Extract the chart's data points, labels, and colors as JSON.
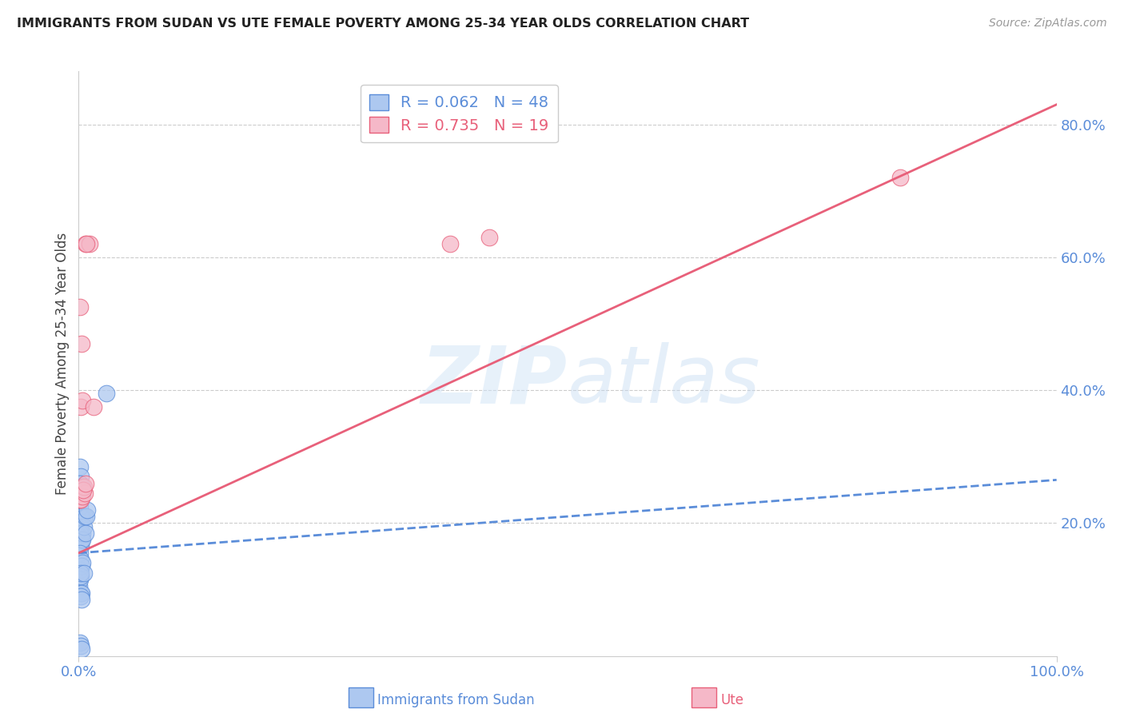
{
  "title": "IMMIGRANTS FROM SUDAN VS UTE FEMALE POVERTY AMONG 25-34 YEAR OLDS CORRELATION CHART",
  "source": "Source: ZipAtlas.com",
  "ylabel": "Female Poverty Among 25-34 Year Olds",
  "xlim": [
    0.0,
    1.0
  ],
  "ylim": [
    0.0,
    0.88
  ],
  "yticks_right": [
    0.2,
    0.4,
    0.6,
    0.8
  ],
  "ytick_right_labels": [
    "20.0%",
    "40.0%",
    "60.0%",
    "80.0%"
  ],
  "blue_R": "0.062",
  "blue_N": "48",
  "pink_R": "0.735",
  "pink_N": "19",
  "blue_color": "#adc8f0",
  "pink_color": "#f5b8c8",
  "blue_line_color": "#5b8dd9",
  "pink_line_color": "#e8607a",
  "blue_scatter_x": [
    0.001,
    0.002,
    0.003,
    0.001,
    0.0008,
    0.0015,
    0.0025,
    0.003,
    0.0035,
    0.004,
    0.001,
    0.0005,
    0.0018,
    0.002,
    0.0022,
    0.003,
    0.0008,
    0.001,
    0.0012,
    0.0015,
    0.002,
    0.0025,
    0.003,
    0.0035,
    0.004,
    0.005,
    0.006,
    0.007,
    0.008,
    0.009,
    0.001,
    0.0015,
    0.002,
    0.003,
    0.004,
    0.0008,
    0.0012,
    0.0018,
    0.0022,
    0.003,
    0.0025,
    0.003,
    0.0018,
    0.005,
    0.001,
    0.002,
    0.003,
    0.028
  ],
  "blue_scatter_y": [
    0.285,
    0.27,
    0.255,
    0.225,
    0.245,
    0.26,
    0.235,
    0.24,
    0.255,
    0.21,
    0.165,
    0.17,
    0.17,
    0.21,
    0.19,
    0.175,
    0.18,
    0.19,
    0.195,
    0.185,
    0.175,
    0.165,
    0.175,
    0.185,
    0.175,
    0.195,
    0.21,
    0.185,
    0.21,
    0.22,
    0.13,
    0.155,
    0.145,
    0.135,
    0.14,
    0.105,
    0.115,
    0.12,
    0.095,
    0.095,
    0.09,
    0.085,
    0.125,
    0.125,
    0.02,
    0.015,
    0.01,
    0.395
  ],
  "pink_scatter_x": [
    0.001,
    0.003,
    0.007,
    0.011,
    0.001,
    0.001,
    0.002,
    0.002,
    0.0035,
    0.006,
    0.38,
    0.42,
    0.004,
    0.008,
    0.005,
    0.0045,
    0.007,
    0.84,
    0.015
  ],
  "pink_scatter_y": [
    0.525,
    0.47,
    0.62,
    0.62,
    0.235,
    0.235,
    0.235,
    0.375,
    0.24,
    0.245,
    0.62,
    0.63,
    0.385,
    0.62,
    0.255,
    0.25,
    0.26,
    0.72,
    0.375
  ],
  "blue_trend_x": [
    0.0,
    1.0
  ],
  "blue_trend_y": [
    0.155,
    0.265
  ],
  "pink_trend_x": [
    0.0,
    1.0
  ],
  "pink_trend_y": [
    0.155,
    0.83
  ],
  "watermark_zip": "ZIP",
  "watermark_atlas": "atlas",
  "legend_blue_label": "Immigrants from Sudan",
  "legend_pink_label": "Ute",
  "background_color": "#ffffff",
  "grid_color": "#cccccc"
}
